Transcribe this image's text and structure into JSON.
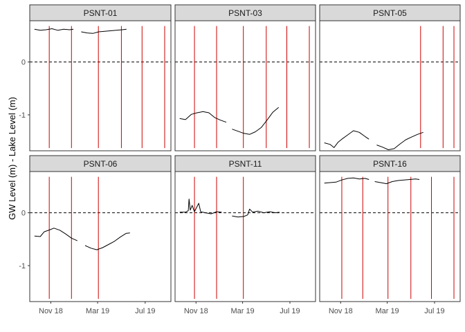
{
  "chart_data": {
    "type": "line",
    "title": "",
    "xlabel": "",
    "ylabel": "GW Level (m) - Lake Level (m)",
    "ylim": [
      -1.68,
      0.78
    ],
    "xlim_days": [
      "2018-09-08",
      "2019-09-05"
    ],
    "x_ticks": [
      {
        "date": "2018-11-01",
        "label": "Nov 18"
      },
      {
        "date": "2019-03-01",
        "label": "Mar 19"
      },
      {
        "date": "2019-07-01",
        "label": "Jul 19"
      }
    ],
    "y_ticks": [
      {
        "value": 0,
        "label": "0"
      },
      {
        "value": -1,
        "label": "-1"
      }
    ],
    "reference_line": {
      "y": 0,
      "style": "dashed",
      "color": "#000000"
    },
    "line_color": "#000000",
    "event_color": "#cc0000",
    "strip_fill": "#d9d9d9",
    "grid": false,
    "facets": [
      {
        "name": "PSNT-01",
        "events": [
          "2018-10-28",
          "2018-12-24",
          "2019-03-03",
          "2019-05-01",
          "2019-06-23",
          "2019-08-20"
        ],
        "segments": [
          [
            [
              "2018-09-20",
              0.62
            ],
            [
              "2018-10-05",
              0.6
            ],
            [
              "2018-10-20",
              0.61
            ],
            [
              "2018-11-04",
              0.63
            ],
            [
              "2018-11-19",
              0.6
            ],
            [
              "2018-12-04",
              0.62
            ],
            [
              "2018-12-19",
              0.61
            ],
            [
              "2018-12-29",
              0.62
            ]
          ],
          [
            [
              "2019-01-18",
              0.57
            ],
            [
              "2019-02-02",
              0.55
            ],
            [
              "2019-02-17",
              0.54
            ],
            [
              "2019-03-04",
              0.57
            ],
            [
              "2019-03-19",
              0.58
            ],
            [
              "2019-04-03",
              0.59
            ],
            [
              "2019-04-18",
              0.6
            ],
            [
              "2019-05-03",
              0.61
            ],
            [
              "2019-05-14",
              0.62
            ]
          ]
        ]
      },
      {
        "name": "PSNT-03",
        "events": [
          "2018-10-28",
          "2018-12-24",
          "2019-03-03",
          "2019-05-01",
          "2019-06-23",
          "2019-08-20"
        ],
        "segments": [
          [
            [
              "2018-09-20",
              -1.07
            ],
            [
              "2018-10-05",
              -1.09
            ],
            [
              "2018-10-20",
              -0.99
            ],
            [
              "2018-11-04",
              -0.96
            ],
            [
              "2018-11-19",
              -0.94
            ],
            [
              "2018-12-04",
              -0.96
            ],
            [
              "2018-12-19",
              -1.05
            ],
            [
              "2019-01-03",
              -1.1
            ],
            [
              "2019-01-18",
              -1.14
            ]
          ],
          [
            [
              "2019-02-02",
              -1.27
            ],
            [
              "2019-02-17",
              -1.31
            ],
            [
              "2019-03-04",
              -1.35
            ],
            [
              "2019-03-19",
              -1.37
            ],
            [
              "2019-04-03",
              -1.32
            ],
            [
              "2019-04-18",
              -1.24
            ],
            [
              "2019-05-03",
              -1.1
            ],
            [
              "2019-05-18",
              -0.95
            ],
            [
              "2019-06-02",
              -0.86
            ]
          ]
        ]
      },
      {
        "name": "PSNT-05",
        "events": [
          "2019-05-26",
          "2019-07-23",
          "2019-08-20"
        ],
        "segments": [
          [
            [
              "2018-09-20",
              -1.53
            ],
            [
              "2018-10-05",
              -1.56
            ],
            [
              "2018-10-15",
              -1.62
            ],
            [
              "2018-10-25",
              -1.52
            ],
            [
              "2018-11-04",
              -1.46
            ],
            [
              "2018-11-19",
              -1.38
            ],
            [
              "2018-12-04",
              -1.3
            ],
            [
              "2018-12-19",
              -1.33
            ],
            [
              "2019-01-03",
              -1.41
            ],
            [
              "2019-01-13",
              -1.46
            ]
          ],
          [
            [
              "2019-02-02",
              -1.57
            ],
            [
              "2019-02-17",
              -1.61
            ],
            [
              "2019-03-04",
              -1.66
            ],
            [
              "2019-03-19",
              -1.64
            ],
            [
              "2019-04-03",
              -1.55
            ],
            [
              "2019-04-18",
              -1.47
            ],
            [
              "2019-05-03",
              -1.42
            ],
            [
              "2019-05-18",
              -1.37
            ],
            [
              "2019-06-02",
              -1.33
            ]
          ]
        ]
      },
      {
        "name": "PSNT-06",
        "events": [
          "2018-10-28",
          "2018-12-24",
          "2019-03-03"
        ],
        "segments": [
          [
            [
              "2018-09-20",
              -0.44
            ],
            [
              "2018-10-05",
              -0.45
            ],
            [
              "2018-10-15",
              -0.36
            ],
            [
              "2018-10-30",
              -0.32
            ],
            [
              "2018-11-09",
              -0.29
            ],
            [
              "2018-11-24",
              -0.33
            ],
            [
              "2018-12-09",
              -0.4
            ],
            [
              "2018-12-24",
              -0.48
            ],
            [
              "2019-01-08",
              -0.53
            ]
          ],
          [
            [
              "2019-01-28",
              -0.62
            ],
            [
              "2019-02-12",
              -0.67
            ],
            [
              "2019-02-27",
              -0.7
            ],
            [
              "2019-03-14",
              -0.66
            ],
            [
              "2019-03-29",
              -0.6
            ],
            [
              "2019-04-13",
              -0.54
            ],
            [
              "2019-04-28",
              -0.46
            ],
            [
              "2019-05-13",
              -0.39
            ],
            [
              "2019-05-23",
              -0.38
            ]
          ]
        ]
      },
      {
        "name": "PSNT-11",
        "events": [
          "2018-10-28",
          "2018-12-24",
          "2019-03-03"
        ],
        "segments": [
          [
            [
              "2018-09-20",
              0.01
            ],
            [
              "2018-10-05",
              0.01
            ],
            [
              "2018-10-12",
              0.04
            ],
            [
              "2018-10-14",
              0.26
            ],
            [
              "2018-10-17",
              0.05
            ],
            [
              "2018-10-22",
              0.14
            ],
            [
              "2018-10-28",
              0.02
            ],
            [
              "2018-11-08",
              0.18
            ],
            [
              "2018-11-13",
              0.02
            ],
            [
              "2018-11-25",
              0.0
            ],
            [
              "2018-12-10",
              -0.02
            ],
            [
              "2018-12-24",
              0.02
            ],
            [
              "2019-01-06",
              0.01
            ]
          ],
          [
            [
              "2019-02-02",
              -0.06
            ],
            [
              "2019-02-17",
              -0.08
            ],
            [
              "2019-03-04",
              -0.07
            ],
            [
              "2019-03-14",
              -0.04
            ],
            [
              "2019-03-19",
              0.07
            ],
            [
              "2019-03-27",
              0.01
            ],
            [
              "2019-04-10",
              0.03
            ],
            [
              "2019-04-25",
              0.0
            ],
            [
              "2019-05-10",
              0.02
            ],
            [
              "2019-05-25",
              0.0
            ],
            [
              "2019-06-04",
              0.01
            ]
          ]
        ]
      },
      {
        "name": "PSNT-16",
        "events": [
          "2018-11-04",
          "2018-12-28",
          "2019-03-03",
          "2019-05-01",
          "2019-06-23",
          "2019-08-20"
        ],
        "segments": [
          [
            [
              "2018-09-20",
              0.56
            ],
            [
              "2018-10-05",
              0.57
            ],
            [
              "2018-10-20",
              0.58
            ],
            [
              "2018-11-04",
              0.62
            ],
            [
              "2018-11-19",
              0.65
            ],
            [
              "2018-12-04",
              0.66
            ],
            [
              "2018-12-19",
              0.64
            ],
            [
              "2019-01-03",
              0.65
            ],
            [
              "2019-01-13",
              0.63
            ]
          ],
          [
            [
              "2019-01-28",
              0.59
            ],
            [
              "2019-02-12",
              0.57
            ],
            [
              "2019-02-27",
              0.55
            ],
            [
              "2019-03-14",
              0.59
            ],
            [
              "2019-03-29",
              0.61
            ],
            [
              "2019-04-13",
              0.62
            ],
            [
              "2019-04-28",
              0.63
            ],
            [
              "2019-05-13",
              0.64
            ],
            [
              "2019-05-23",
              0.63
            ]
          ]
        ]
      }
    ]
  }
}
